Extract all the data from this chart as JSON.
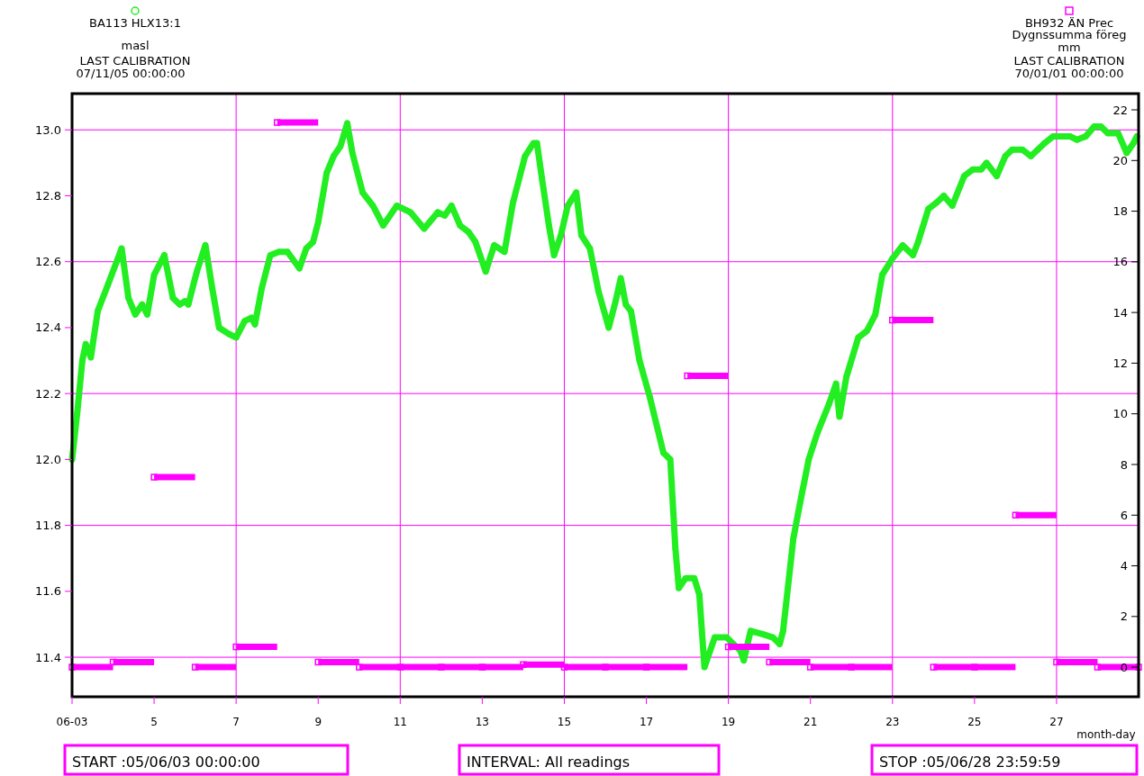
{
  "chart_data": {
    "type": "line",
    "xlabel": "month-day",
    "ylabel": "masl",
    "y2label": "mm",
    "xlim": [
      "--06-03",
      "--06-29"
    ],
    "xticks": [
      {
        "value": "--06-03",
        "label": "06-03"
      },
      {
        "value": "--06-05",
        "label": "5"
      },
      {
        "value": "--06-07",
        "label": "7"
      },
      {
        "value": "--06-09",
        "label": "9"
      },
      {
        "value": "--06-11",
        "label": "11"
      },
      {
        "value": "--06-13",
        "label": "13"
      },
      {
        "value": "--06-15",
        "label": "15"
      },
      {
        "value": "--06-17",
        "label": "17"
      },
      {
        "value": "--06-19",
        "label": "19"
      },
      {
        "value": "--06-21",
        "label": "21"
      },
      {
        "value": "--06-23",
        "label": "23"
      },
      {
        "value": "--06-25",
        "label": "25"
      },
      {
        "value": "--06-27",
        "label": "27"
      }
    ],
    "ylim": [
      11.28,
      13.11
    ],
    "yticks": [
      11.4,
      11.6,
      11.8,
      {
        "value": 12,
        "label": "12.0"
      },
      12.2,
      12.4,
      12.6,
      12.8,
      {
        "value": 13,
        "label": "13.0"
      }
    ],
    "y2lim": [
      -1.17,
      22.64
    ],
    "y2ticks": [
      0,
      2,
      4,
      6,
      8,
      10,
      12,
      14,
      16,
      18,
      20,
      22
    ],
    "grid": true,
    "legend": "top",
    "series": [
      {
        "name": "BA113 HLX13:1",
        "color": "#22ee22",
        "marker": "circle",
        "x": [
          "--06-03T00:00",
          "--06-03T03:00",
          "--06-03T06:00",
          "--06-03T08:00",
          "--06-03T11:00",
          "--06-03T15:00",
          "--06-03T21:00",
          "--06-04T05:00",
          "--06-04T09:00",
          "--06-04T13:00",
          "--06-04T17:00",
          "--06-04T20:00",
          "--06-05T00:00",
          "--06-05T06:00",
          "--06-05T11:00",
          "--06-05T15:00",
          "--06-05T18:00",
          "--06-05T20:00",
          "--06-06T01:00",
          "--06-06T06:00",
          "--06-06T10:00",
          "--06-06T14:00",
          "--06-06T20:00",
          "--06-07T00:00",
          "--06-07T05:00",
          "--06-07T09:00",
          "--06-07T11:00",
          "--06-07T15:00",
          "--06-07T20:00",
          "--06-08T01:00",
          "--06-08T06:00",
          "--06-08T13:00",
          "--06-08T17:00",
          "--06-08T21:00",
          "--06-09T00:00",
          "--06-09T05:00",
          "--06-09T09:00",
          "--06-09T13:00",
          "--06-09T17:00",
          "--06-09T20:00",
          "--06-10T02:00",
          "--06-10T08:00",
          "--06-10T14:00",
          "--06-10T22:00",
          "--06-11T06:00",
          "--06-11T14:00",
          "--06-11T22:00",
          "--06-12T02:00",
          "--06-12T06:00",
          "--06-12T11:00",
          "--06-12T16:00",
          "--06-12T20:00",
          "--06-13T02:00",
          "--06-13T07:00",
          "--06-13T13:00",
          "--06-13T18:00",
          "--06-14T01:00",
          "--06-14T06:00",
          "--06-14T08:00",
          "--06-14T11:00",
          "--06-14T15:00",
          "--06-14T18:00",
          "--06-14T22:00",
          "--06-15T02:00",
          "--06-15T07:00",
          "--06-15T10:00",
          "--06-15T15:00",
          "--06-15T20:00",
          "--06-16T02:00",
          "--06-16T06:00",
          "--06-16T09:00",
          "--06-16T12:00",
          "--06-16T15:00",
          "--06-16T20:00",
          "--06-17T02:00",
          "--06-17T10:00",
          "--06-17T14:00",
          "--06-17T17:00",
          "--06-17T19:00",
          "--06-17T23:00",
          "--06-18T04:00",
          "--06-18T07:00",
          "--06-18T10:00",
          "--06-18T16:00",
          "--06-18T23:00",
          "--06-19T03:00",
          "--06-19T07:00",
          "--06-19T09:00",
          "--06-19T13:00",
          "--06-19T20:00",
          "--06-20T02:00",
          "--06-20T06:00",
          "--06-20T08:00",
          "--06-20T14:00",
          "--06-20T18:00",
          "--06-20T23:00",
          "--06-21T04:00",
          "--06-21T11:00",
          "--06-21T15:00",
          "--06-21T17:00",
          "--06-21T21:00",
          "--06-22T04:00",
          "--06-22T09:00",
          "--06-22T14:00",
          "--06-22T18:00",
          "--06-23T00:00",
          "--06-23T06:00",
          "--06-23T12:00",
          "--06-23T15:00",
          "--06-23T21:00",
          "--06-24T02:00",
          "--06-24T06:00",
          "--06-24T11:00",
          "--06-24T18:00",
          "--06-24T23:00",
          "--06-25T04:00",
          "--06-25T07:00",
          "--06-25T13:00",
          "--06-25T18:00",
          "--06-25T22:00",
          "--06-26T04:00",
          "--06-26T09:00",
          "--06-26T13:00",
          "--06-26T17:00",
          "--06-26T22:00",
          "--06-27T04:00",
          "--06-27T08:00",
          "--06-27T12:00",
          "--06-27T17:00",
          "--06-27T22:00",
          "--06-28T02:00",
          "--06-28T06:00",
          "--06-28T12:00",
          "--06-28T17:00",
          "--06-28T21:00",
          "--06-28T23:00"
        ],
        "values": [
          12.0,
          12.14,
          12.3,
          12.35,
          12.31,
          12.45,
          12.53,
          12.64,
          12.49,
          12.44,
          12.47,
          12.44,
          12.56,
          12.62,
          12.49,
          12.47,
          12.48,
          12.47,
          12.57,
          12.65,
          12.52,
          12.4,
          12.38,
          12.37,
          12.42,
          12.43,
          12.41,
          12.52,
          12.62,
          12.63,
          12.63,
          12.58,
          12.64,
          12.66,
          12.72,
          12.87,
          12.92,
          12.95,
          13.02,
          12.93,
          12.81,
          12.77,
          12.71,
          12.77,
          12.75,
          12.7,
          12.75,
          12.74,
          12.77,
          12.71,
          12.69,
          12.66,
          12.57,
          12.65,
          12.63,
          12.78,
          12.92,
          12.96,
          12.96,
          12.85,
          12.71,
          12.62,
          12.68,
          12.77,
          12.81,
          12.68,
          12.64,
          12.51,
          12.4,
          12.48,
          12.55,
          12.47,
          12.45,
          12.3,
          12.19,
          12.02,
          12.0,
          11.73,
          11.61,
          11.64,
          11.64,
          11.59,
          11.37,
          11.46,
          11.46,
          11.44,
          11.42,
          11.39,
          11.48,
          11.47,
          11.46,
          11.44,
          11.48,
          11.76,
          11.87,
          12.0,
          12.08,
          12.17,
          12.23,
          12.13,
          12.25,
          12.37,
          12.39,
          12.44,
          12.56,
          12.61,
          12.65,
          12.62,
          12.66,
          12.76,
          12.78,
          12.8,
          12.77,
          12.86,
          12.88,
          12.88,
          12.9,
          12.86,
          12.92,
          12.94,
          12.94,
          12.92,
          12.94,
          12.96,
          12.98,
          12.98,
          12.98,
          12.97,
          12.98,
          13.01,
          13.01,
          12.99,
          12.99,
          12.93,
          12.96,
          12.98
        ]
      },
      {
        "name": "BH932 ÄN Prec",
        "color": "#ff00ff",
        "type": "step",
        "axis": "y2",
        "marker": "square",
        "x": [
          "--06-03",
          "--06-04",
          "--06-05",
          "--06-06",
          "--06-07",
          "--06-08",
          "--06-09",
          "--06-10",
          "--06-11",
          "--06-12",
          "--06-13",
          "--06-14",
          "--06-15",
          "--06-16",
          "--06-17",
          "--06-18",
          "--06-19",
          "--06-20",
          "--06-21",
          "--06-22",
          "--06-23",
          "--06-24",
          "--06-25",
          "--06-26",
          "--06-27",
          "--06-28",
          "--06-29"
        ],
        "values": [
          0,
          0.2,
          7.5,
          0,
          0.8,
          21.5,
          0.2,
          0,
          0,
          0,
          0,
          0.1,
          0,
          0,
          0,
          11.5,
          0.8,
          0.2,
          0,
          0,
          13.7,
          0,
          0,
          6.0,
          0.2,
          0,
          0
        ]
      }
    ],
    "annotations": [
      "LAST CALIBRATION",
      "07/11/05 00:00:00",
      "Dygnssumma föreg",
      "LAST CALIBRATION",
      "70/01/01 00:00:00",
      "START :05/06/03 00:00:00",
      "INTERVAL: All readings",
      "STOP :05/06/28 23:59:59"
    ]
  }
}
